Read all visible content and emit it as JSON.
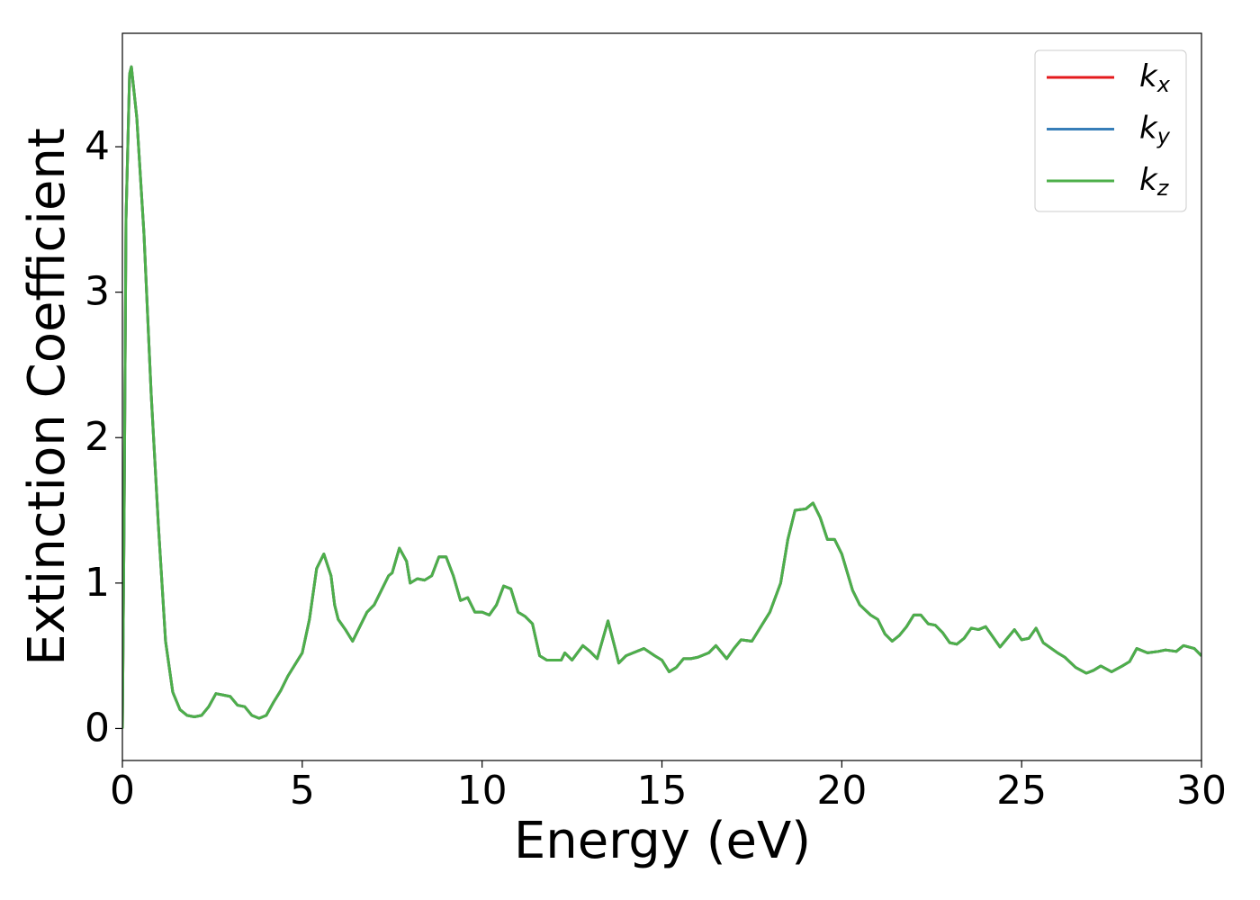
{
  "chart_data": {
    "type": "line",
    "xlabel": "Energy (eV)",
    "ylabel": "Extinction Coefficient",
    "xlim": [
      0,
      30
    ],
    "ylim": [
      -0.22,
      4.78
    ],
    "xticks": [
      0,
      5,
      10,
      15,
      20,
      25,
      30
    ],
    "yticks": [
      0,
      1,
      2,
      3,
      4
    ],
    "legend": "upper right",
    "x": [
      0,
      0.05,
      0.1,
      0.2,
      0.25,
      0.4,
      0.6,
      0.8,
      1.0,
      1.2,
      1.4,
      1.6,
      1.8,
      2.0,
      2.2,
      2.4,
      2.6,
      2.8,
      3.0,
      3.2,
      3.4,
      3.6,
      3.8,
      4.0,
      4.2,
      4.4,
      4.6,
      4.8,
      5.0,
      5.2,
      5.4,
      5.6,
      5.8,
      5.9,
      6.0,
      6.2,
      6.4,
      6.6,
      6.8,
      7.0,
      7.2,
      7.4,
      7.5,
      7.7,
      7.9,
      8.0,
      8.2,
      8.4,
      8.6,
      8.8,
      9.0,
      9.2,
      9.4,
      9.6,
      9.8,
      10.0,
      10.2,
      10.4,
      10.6,
      10.8,
      11.0,
      11.2,
      11.4,
      11.6,
      11.8,
      12.0,
      12.2,
      12.3,
      12.5,
      12.8,
      13.0,
      13.2,
      13.5,
      13.7,
      13.8,
      14.0,
      14.2,
      14.5,
      14.8,
      15.0,
      15.2,
      15.4,
      15.6,
      15.8,
      16.0,
      16.3,
      16.5,
      16.8,
      17.0,
      17.2,
      17.5,
      17.8,
      18.0,
      18.3,
      18.5,
      18.7,
      19.0,
      19.2,
      19.4,
      19.6,
      19.8,
      20.0,
      20.3,
      20.5,
      20.8,
      21.0,
      21.2,
      21.4,
      21.6,
      21.8,
      22.0,
      22.2,
      22.4,
      22.6,
      22.8,
      23.0,
      23.2,
      23.4,
      23.6,
      23.8,
      24.0,
      24.2,
      24.4,
      24.6,
      24.8,
      25.0,
      25.2,
      25.4,
      25.6,
      26.0,
      26.2,
      26.5,
      26.8,
      27.0,
      27.2,
      27.5,
      27.8,
      28.0,
      28.2,
      28.5,
      28.8,
      29.0,
      29.3,
      29.5,
      29.8,
      30.0
    ],
    "series": [
      {
        "name": "kx",
        "color": "#e41a1c",
        "values": [
          0,
          1.5,
          3.5,
          4.5,
          4.55,
          4.2,
          3.4,
          2.3,
          1.4,
          0.6,
          0.25,
          0.13,
          0.09,
          0.08,
          0.09,
          0.15,
          0.24,
          0.23,
          0.22,
          0.16,
          0.15,
          0.09,
          0.07,
          0.09,
          0.18,
          0.26,
          0.36,
          0.44,
          0.52,
          0.75,
          1.1,
          1.2,
          1.05,
          0.85,
          0.75,
          0.68,
          0.6,
          0.7,
          0.8,
          0.85,
          0.95,
          1.05,
          1.07,
          1.24,
          1.15,
          1.0,
          1.03,
          1.02,
          1.05,
          1.18,
          1.18,
          1.05,
          0.88,
          0.9,
          0.8,
          0.8,
          0.78,
          0.85,
          0.98,
          0.96,
          0.8,
          0.77,
          0.72,
          0.5,
          0.47,
          0.47,
          0.47,
          0.52,
          0.47,
          0.57,
          0.53,
          0.48,
          0.74,
          0.55,
          0.45,
          0.5,
          0.52,
          0.55,
          0.5,
          0.47,
          0.39,
          0.42,
          0.48,
          0.48,
          0.49,
          0.52,
          0.57,
          0.48,
          0.55,
          0.61,
          0.6,
          0.72,
          0.8,
          1.0,
          1.3,
          1.5,
          1.51,
          1.55,
          1.45,
          1.3,
          1.3,
          1.2,
          0.95,
          0.85,
          0.78,
          0.75,
          0.65,
          0.6,
          0.64,
          0.7,
          0.78,
          0.78,
          0.72,
          0.71,
          0.66,
          0.59,
          0.58,
          0.62,
          0.69,
          0.68,
          0.7,
          0.63,
          0.56,
          0.62,
          0.68,
          0.61,
          0.62,
          0.69,
          0.59,
          0.52,
          0.49,
          0.42,
          0.38,
          0.4,
          0.43,
          0.39,
          0.43,
          0.46,
          0.55,
          0.52,
          0.53,
          0.54,
          0.53,
          0.57,
          0.55,
          0.5
        ]
      },
      {
        "name": "ky",
        "color": "#377eb8",
        "values": [
          0,
          1.5,
          3.5,
          4.5,
          4.55,
          4.2,
          3.4,
          2.3,
          1.4,
          0.6,
          0.25,
          0.13,
          0.09,
          0.08,
          0.09,
          0.15,
          0.24,
          0.23,
          0.22,
          0.16,
          0.15,
          0.09,
          0.07,
          0.09,
          0.18,
          0.26,
          0.36,
          0.44,
          0.52,
          0.75,
          1.1,
          1.2,
          1.05,
          0.85,
          0.75,
          0.68,
          0.6,
          0.7,
          0.8,
          0.85,
          0.95,
          1.05,
          1.07,
          1.24,
          1.15,
          1.0,
          1.03,
          1.02,
          1.05,
          1.18,
          1.18,
          1.05,
          0.88,
          0.9,
          0.8,
          0.8,
          0.78,
          0.85,
          0.98,
          0.96,
          0.8,
          0.77,
          0.72,
          0.5,
          0.47,
          0.47,
          0.47,
          0.52,
          0.47,
          0.57,
          0.53,
          0.48,
          0.74,
          0.55,
          0.45,
          0.5,
          0.52,
          0.55,
          0.5,
          0.47,
          0.39,
          0.42,
          0.48,
          0.48,
          0.49,
          0.52,
          0.57,
          0.48,
          0.55,
          0.61,
          0.6,
          0.72,
          0.8,
          1.0,
          1.3,
          1.5,
          1.51,
          1.55,
          1.45,
          1.3,
          1.3,
          1.2,
          0.95,
          0.85,
          0.78,
          0.75,
          0.65,
          0.6,
          0.64,
          0.7,
          0.78,
          0.78,
          0.72,
          0.71,
          0.66,
          0.59,
          0.58,
          0.62,
          0.69,
          0.68,
          0.7,
          0.63,
          0.56,
          0.62,
          0.68,
          0.61,
          0.62,
          0.69,
          0.59,
          0.52,
          0.49,
          0.42,
          0.38,
          0.4,
          0.43,
          0.39,
          0.43,
          0.46,
          0.55,
          0.52,
          0.53,
          0.54,
          0.53,
          0.57,
          0.55,
          0.5
        ]
      },
      {
        "name": "kz",
        "color": "#4daf4a",
        "values": [
          0,
          1.5,
          3.5,
          4.5,
          4.55,
          4.2,
          3.4,
          2.3,
          1.4,
          0.6,
          0.25,
          0.13,
          0.09,
          0.08,
          0.09,
          0.15,
          0.24,
          0.23,
          0.22,
          0.16,
          0.15,
          0.09,
          0.07,
          0.09,
          0.18,
          0.26,
          0.36,
          0.44,
          0.52,
          0.75,
          1.1,
          1.2,
          1.05,
          0.85,
          0.75,
          0.68,
          0.6,
          0.7,
          0.8,
          0.85,
          0.95,
          1.05,
          1.07,
          1.24,
          1.15,
          1.0,
          1.03,
          1.02,
          1.05,
          1.18,
          1.18,
          1.05,
          0.88,
          0.9,
          0.8,
          0.8,
          0.78,
          0.85,
          0.98,
          0.96,
          0.8,
          0.77,
          0.72,
          0.5,
          0.47,
          0.47,
          0.47,
          0.52,
          0.47,
          0.57,
          0.53,
          0.48,
          0.74,
          0.55,
          0.45,
          0.5,
          0.52,
          0.55,
          0.5,
          0.47,
          0.39,
          0.42,
          0.48,
          0.48,
          0.49,
          0.52,
          0.57,
          0.48,
          0.55,
          0.61,
          0.6,
          0.72,
          0.8,
          1.0,
          1.3,
          1.5,
          1.51,
          1.55,
          1.45,
          1.3,
          1.3,
          1.2,
          0.95,
          0.85,
          0.78,
          0.75,
          0.65,
          0.6,
          0.64,
          0.7,
          0.78,
          0.78,
          0.72,
          0.71,
          0.66,
          0.59,
          0.58,
          0.62,
          0.69,
          0.68,
          0.7,
          0.63,
          0.56,
          0.62,
          0.68,
          0.61,
          0.62,
          0.69,
          0.59,
          0.52,
          0.49,
          0.42,
          0.38,
          0.4,
          0.43,
          0.39,
          0.43,
          0.46,
          0.55,
          0.52,
          0.53,
          0.54,
          0.53,
          0.57,
          0.55,
          0.5
        ]
      }
    ]
  }
}
